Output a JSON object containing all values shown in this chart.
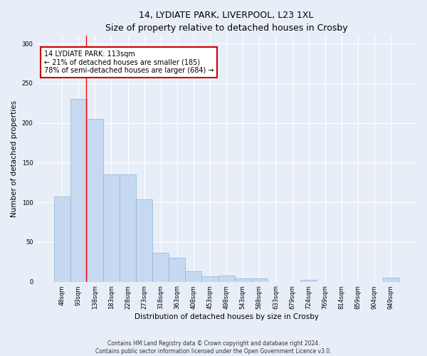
{
  "title1": "14, LYDIATE PARK, LIVERPOOL, L23 1XL",
  "title2": "Size of property relative to detached houses in Crosby",
  "xlabel": "Distribution of detached houses by size in Crosby",
  "ylabel": "Number of detached properties",
  "categories": [
    "48sqm",
    "93sqm",
    "138sqm",
    "183sqm",
    "228sqm",
    "273sqm",
    "318sqm",
    "363sqm",
    "408sqm",
    "453sqm",
    "498sqm",
    "543sqm",
    "588sqm",
    "633sqm",
    "679sqm",
    "724sqm",
    "769sqm",
    "814sqm",
    "859sqm",
    "904sqm",
    "949sqm"
  ],
  "values": [
    107,
    230,
    205,
    135,
    135,
    104,
    36,
    30,
    13,
    7,
    8,
    4,
    4,
    0,
    0,
    2,
    0,
    0,
    0,
    0,
    5
  ],
  "bar_color": "#c6d9f0",
  "bar_edge_color": "#8ab4d8",
  "red_line_x": 1.45,
  "annotation_text": "14 LYDIATE PARK: 113sqm\n← 21% of detached houses are smaller (185)\n78% of semi-detached houses are larger (684) →",
  "annotation_box_color": "#ffffff",
  "annotation_box_edge": "#cc0000",
  "ylim": [
    0,
    310
  ],
  "yticks": [
    0,
    50,
    100,
    150,
    200,
    250,
    300
  ],
  "footer1": "Contains HM Land Registry data © Crown copyright and database right 2024.",
  "footer2": "Contains public sector information licensed under the Open Government Licence v3.0.",
  "bg_color": "#e8eef8",
  "grid_color": "#ffffff",
  "title1_fontsize": 9,
  "title2_fontsize": 8.5,
  "xlabel_fontsize": 7.5,
  "ylabel_fontsize": 7.5,
  "tick_fontsize": 6,
  "annotation_fontsize": 7,
  "footer_fontsize": 5.5
}
